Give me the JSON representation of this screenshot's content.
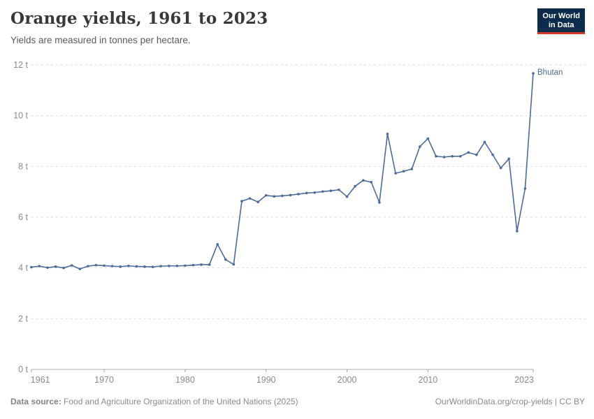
{
  "header": {
    "title": "Orange yields, 1961 to 2023",
    "subtitle": "Yields are measured in tonnes per hectare."
  },
  "logo": {
    "line1": "Our World",
    "line2": "in Data",
    "bg_color": "#0C2C4D",
    "accent_color": "#D8352B"
  },
  "footer": {
    "source_label": "Data source:",
    "source_text": "Food and Agriculture Organization of the United Nations (2025)",
    "link_text": "OurWorldinData.org/crop-yields | CC BY"
  },
  "chart_data": {
    "type": "line",
    "title": "Orange yields, 1961 to 2023",
    "subtitle": "Yields are measured in tonnes per hectare.",
    "unit": "tonnes per hectare",
    "xlim": [
      1961,
      2023
    ],
    "ylim": [
      0,
      12
    ],
    "grid": "horizontal-dashed",
    "legend_position": "end-of-line-label",
    "colors": {
      "line": "#4C6A9C",
      "grid": "#DBDBDB",
      "axis": "#A8A8A8",
      "tick_label": "#8B8B8B"
    },
    "yticks": [
      {
        "value": 0,
        "label": "0 t"
      },
      {
        "value": 2,
        "label": "2 t"
      },
      {
        "value": 4,
        "label": "4 t"
      },
      {
        "value": 6,
        "label": "6 t"
      },
      {
        "value": 8,
        "label": "8 t"
      },
      {
        "value": 10,
        "label": "10 t"
      },
      {
        "value": 12,
        "label": "12 t"
      }
    ],
    "xticks": [
      {
        "value": 1961,
        "label": "1961"
      },
      {
        "value": 1970,
        "label": "1970"
      },
      {
        "value": 1980,
        "label": "1980"
      },
      {
        "value": 1990,
        "label": "1990"
      },
      {
        "value": 2000,
        "label": "2000"
      },
      {
        "value": 2010,
        "label": "2010"
      },
      {
        "value": 2023,
        "label": "2023"
      }
    ],
    "series": [
      {
        "name": "Bhutan",
        "color": "#4C6A9C",
        "x": [
          1961,
          1962,
          1963,
          1964,
          1965,
          1966,
          1967,
          1968,
          1969,
          1970,
          1971,
          1972,
          1973,
          1974,
          1975,
          1976,
          1977,
          1978,
          1979,
          1980,
          1981,
          1982,
          1983,
          1984,
          1985,
          1986,
          1987,
          1988,
          1989,
          1990,
          1991,
          1992,
          1993,
          1994,
          1995,
          1996,
          1997,
          1998,
          1999,
          2000,
          2001,
          2002,
          2003,
          2004,
          2005,
          2006,
          2007,
          2008,
          2009,
          2010,
          2011,
          2012,
          2013,
          2014,
          2015,
          2016,
          2017,
          2018,
          2019,
          2020,
          2021,
          2022,
          2023
        ],
        "values": [
          4.03,
          4.07,
          4.01,
          4.05,
          4.0,
          4.1,
          3.96,
          4.07,
          4.11,
          4.09,
          4.07,
          4.05,
          4.08,
          4.06,
          4.05,
          4.04,
          4.07,
          4.08,
          4.08,
          4.09,
          4.11,
          4.13,
          4.13,
          4.93,
          4.33,
          4.14,
          6.63,
          6.74,
          6.6,
          6.86,
          6.82,
          6.84,
          6.87,
          6.91,
          6.95,
          6.97,
          7.01,
          7.04,
          7.08,
          6.81,
          7.22,
          7.45,
          7.38,
          6.58,
          9.28,
          7.73,
          7.81,
          7.9,
          8.78,
          9.1,
          8.4,
          8.37,
          8.4,
          8.4,
          8.55,
          8.46,
          8.96,
          8.46,
          7.94,
          8.3,
          5.45,
          7.13,
          11.67
        ]
      }
    ]
  }
}
